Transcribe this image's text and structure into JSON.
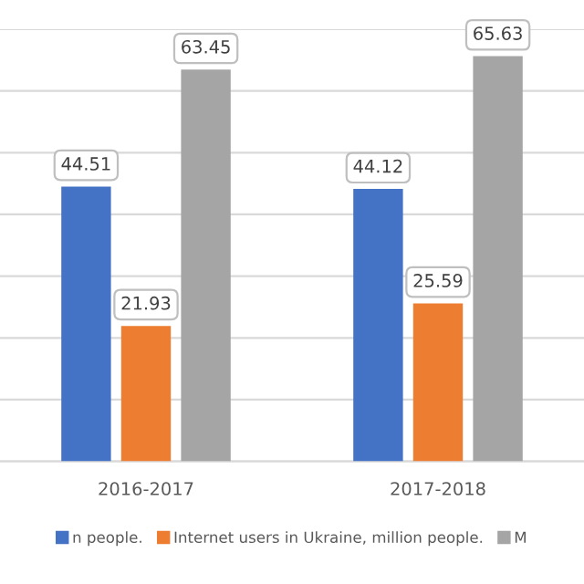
{
  "chart_data": {
    "type": "bar",
    "categories": [
      "2016-2017",
      "2017-2018"
    ],
    "series": [
      {
        "name": "n people.",
        "color": "#4472c4",
        "values": [
          44.51,
          44.12
        ]
      },
      {
        "name": "Internet users in Ukraine, million people.",
        "color": "#ed7d31",
        "values": [
          21.93,
          25.59
        ]
      },
      {
        "name": "M",
        "color": "#a5a5a5",
        "values": [
          63.45,
          65.63
        ]
      }
    ],
    "ylim": [
      0,
      70
    ],
    "yticks": [
      0,
      10,
      20,
      30,
      40,
      50,
      60,
      70
    ],
    "tick_labels": "x",
    "grid": "y",
    "data_labels": true,
    "legend": "bottom"
  }
}
